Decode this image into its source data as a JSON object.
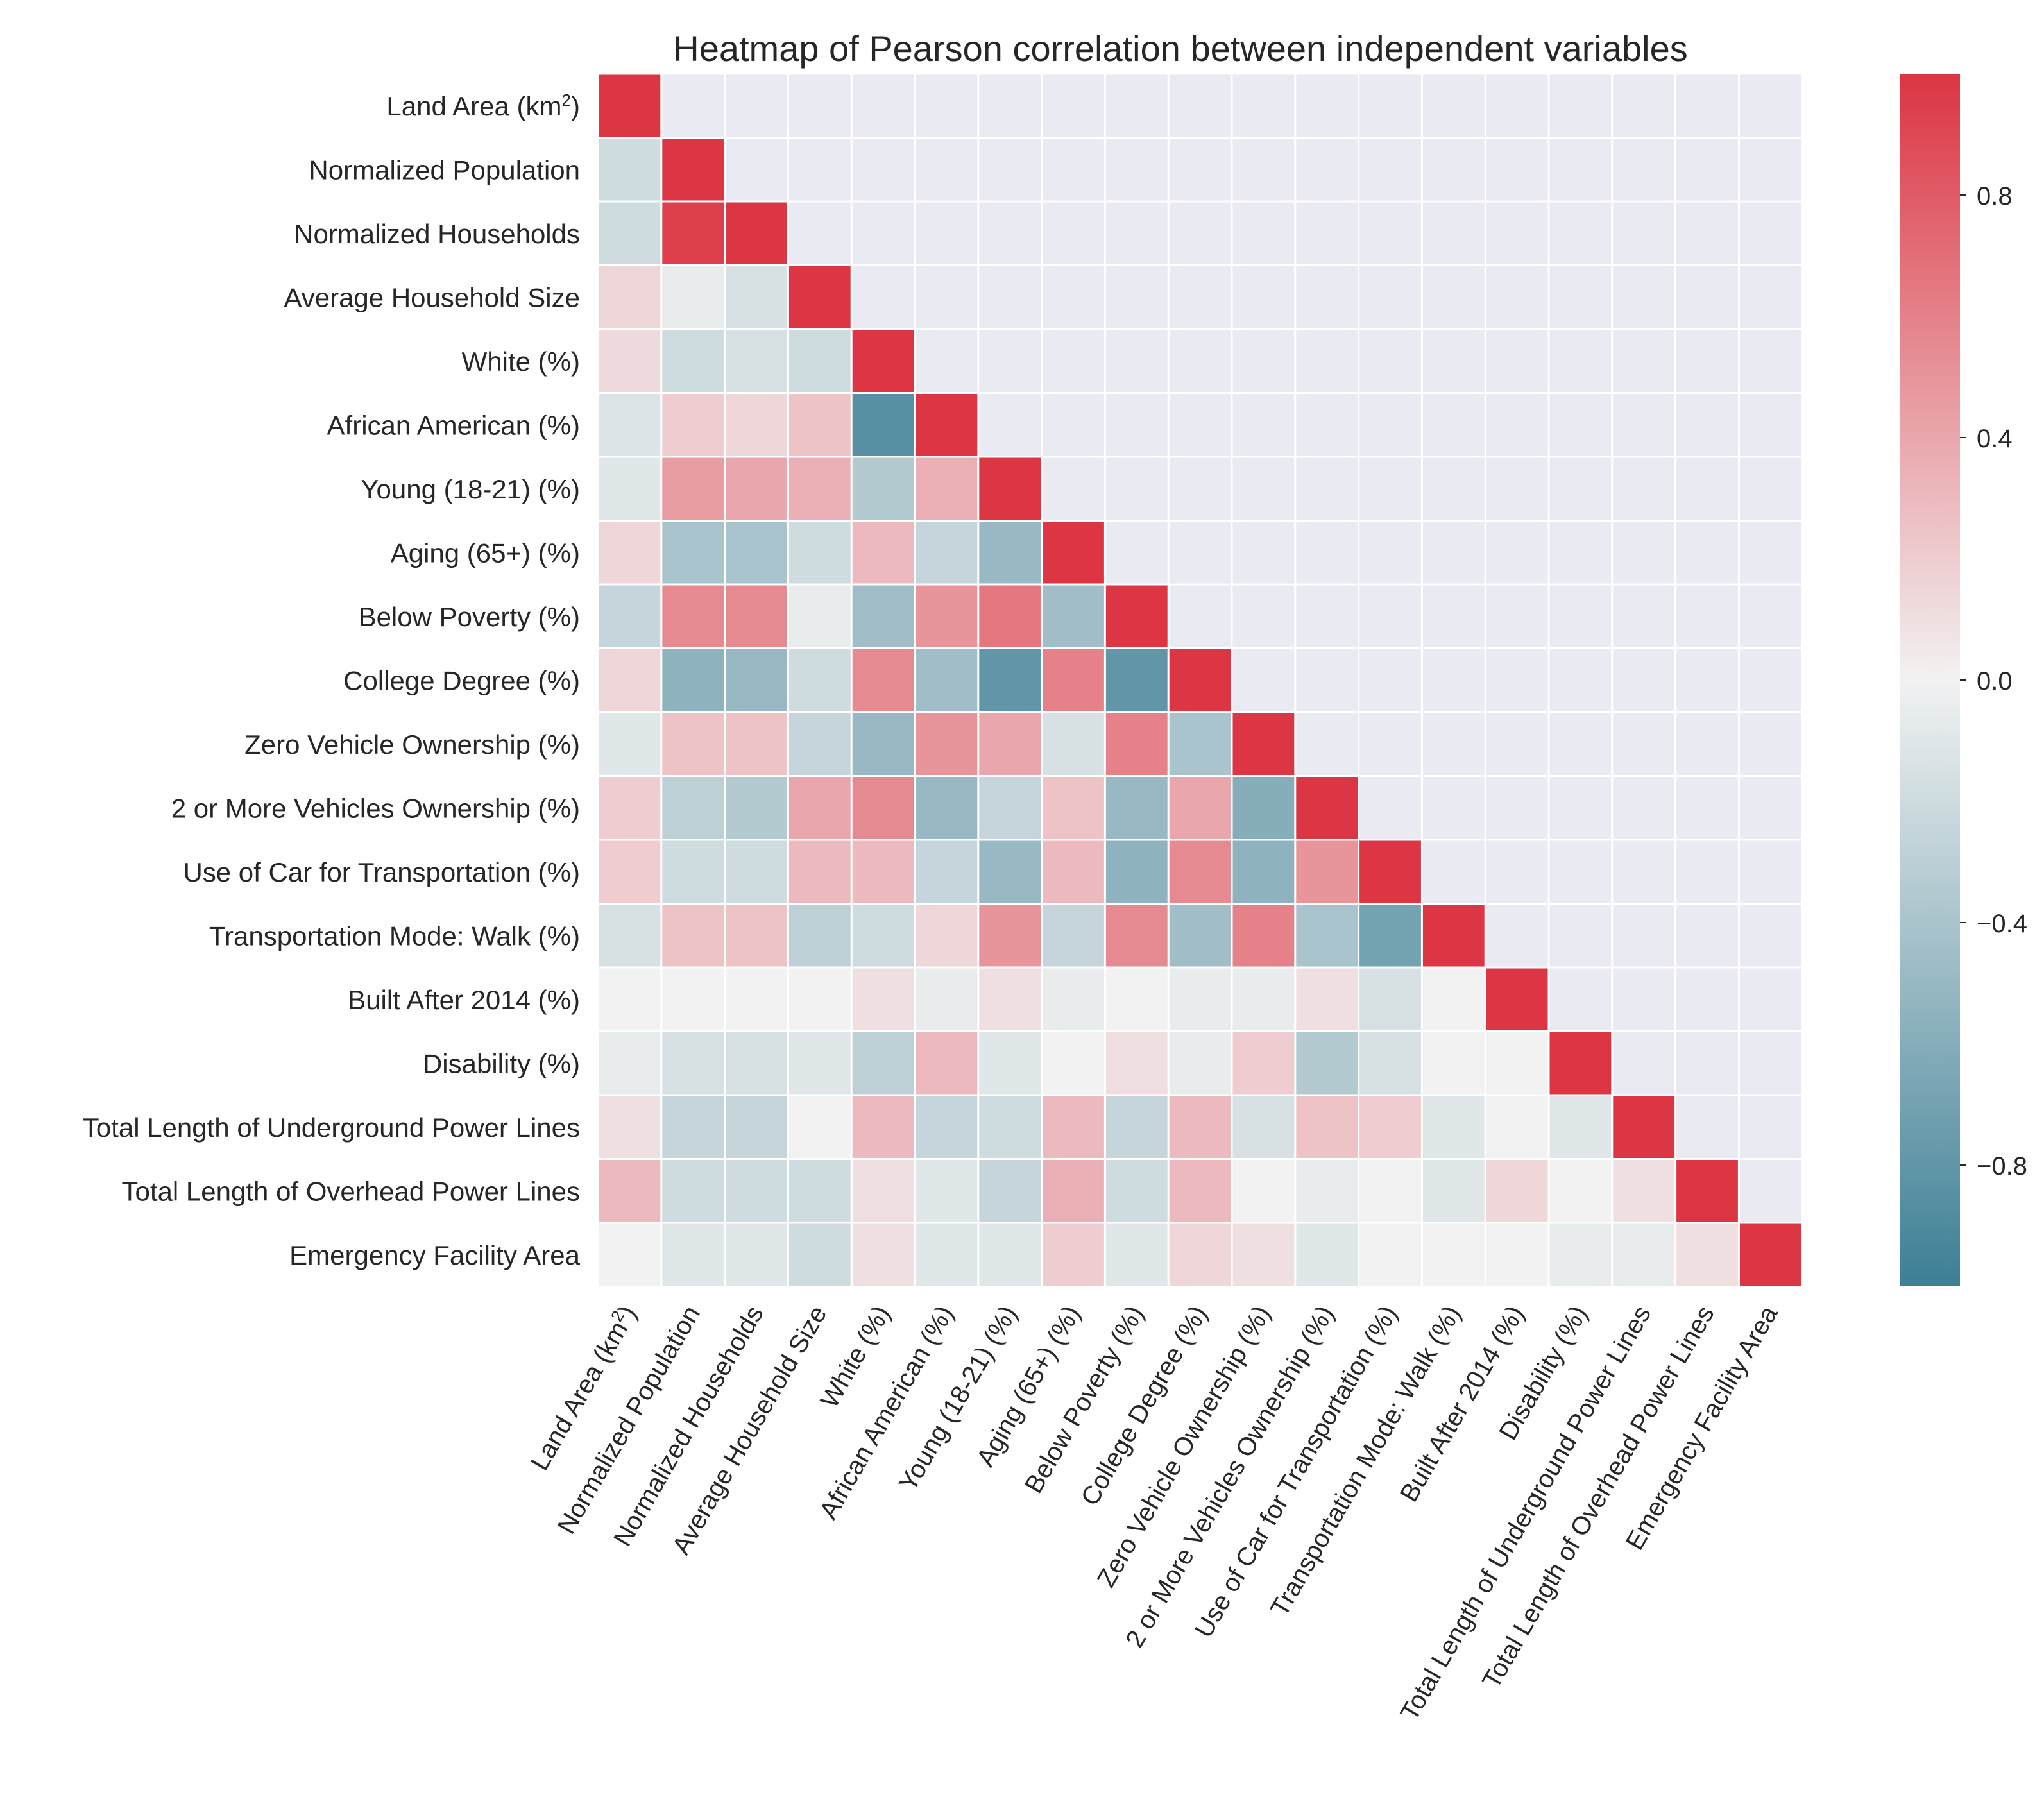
{
  "chart_data": {
    "type": "heatmap",
    "title": "Heatmap of Pearson correlation between independent variables",
    "row_labels": [
      {
        "base": "Land Area (km",
        "sup": "2",
        "tail": ")"
      },
      {
        "base": "Normalized Population"
      },
      {
        "base": "Normalized Households"
      },
      {
        "base": "Average Household Size"
      },
      {
        "base": "White (%)"
      },
      {
        "base": "African American (%)"
      },
      {
        "base": "Young (18-21) (%)"
      },
      {
        "base": "Aging (65+) (%)"
      },
      {
        "base": "Below Poverty (%)"
      },
      {
        "base": "College Degree (%)"
      },
      {
        "base": "Zero Vehicle Ownership (%)"
      },
      {
        "base": "2 or More Vehicles Ownership (%)"
      },
      {
        "base": "Use of Car for Transportation (%)"
      },
      {
        "base": "Transportation Mode: Walk (%)"
      },
      {
        "base": "Built After 2014 (%)"
      },
      {
        "base": "Disability (%)"
      },
      {
        "base": "Total Length of Underground Power Lines"
      },
      {
        "base": "Total Length of Overhead Power Lines"
      },
      {
        "base": "Emergency Facility Area"
      }
    ],
    "col_labels": [
      {
        "base": "Land Area (km",
        "sup": "2",
        "tail": ")"
      },
      {
        "base": "Normalized Population"
      },
      {
        "base": "Normalized Households"
      },
      {
        "base": "Average Household Size"
      },
      {
        "base": "White (%)"
      },
      {
        "base": "African American (%)"
      },
      {
        "base": "Young (18-21) (%)"
      },
      {
        "base": "Aging (65+) (%)"
      },
      {
        "base": "Below Poverty (%)"
      },
      {
        "base": "College Degree (%)"
      },
      {
        "base": "Zero Vehicle Ownership (%)"
      },
      {
        "base": "2 or More Vehicles Ownership (%)"
      },
      {
        "base": "Use of Car for Transportation (%)"
      },
      {
        "base": "Transportation Mode: Walk (%)"
      },
      {
        "base": "Built After 2014 (%)"
      },
      {
        "base": "Disability (%)"
      },
      {
        "base": "Total Length of Underground Power Lines"
      },
      {
        "base": "Total Length of Overhead Power Lines"
      },
      {
        "base": "Emergency Facility Area"
      }
    ],
    "mask": "upper-triangle",
    "values": [
      [
        1.0
      ],
      [
        -0.2,
        1.0
      ],
      [
        -0.2,
        0.95,
        1.0
      ],
      [
        0.15,
        -0.05,
        -0.15,
        1.0
      ],
      [
        0.12,
        -0.2,
        -0.15,
        -0.2,
        1.0
      ],
      [
        -0.12,
        0.2,
        0.15,
        0.25,
        -0.85,
        1.0
      ],
      [
        -0.1,
        0.45,
        0.4,
        0.35,
        -0.35,
        0.35,
        1.0
      ],
      [
        0.15,
        -0.4,
        -0.4,
        -0.2,
        0.3,
        -0.25,
        -0.5,
        1.0
      ],
      [
        -0.25,
        0.55,
        0.55,
        -0.05,
        -0.45,
        0.5,
        0.65,
        -0.45,
        1.0
      ],
      [
        0.15,
        -0.55,
        -0.5,
        -0.2,
        0.55,
        -0.45,
        -0.8,
        0.6,
        -0.8,
        1.0
      ],
      [
        -0.1,
        0.25,
        0.25,
        -0.25,
        -0.5,
        0.5,
        0.4,
        -0.15,
        0.6,
        -0.4,
        1.0
      ],
      [
        0.2,
        -0.3,
        -0.35,
        0.4,
        0.55,
        -0.5,
        -0.25,
        0.25,
        -0.5,
        0.4,
        -0.6,
        1.0
      ],
      [
        0.2,
        -0.2,
        -0.2,
        0.3,
        0.3,
        -0.25,
        -0.5,
        0.3,
        -0.55,
        0.55,
        -0.55,
        0.5,
        1.0
      ],
      [
        -0.15,
        0.25,
        0.25,
        -0.3,
        -0.2,
        0.15,
        0.5,
        -0.25,
        0.55,
        -0.45,
        0.6,
        -0.4,
        -0.7,
        1.0
      ],
      [
        0.0,
        0.0,
        0.0,
        0.0,
        0.1,
        -0.05,
        0.1,
        -0.05,
        0.0,
        -0.05,
        -0.05,
        0.1,
        -0.15,
        0.0,
        1.0
      ],
      [
        -0.05,
        -0.15,
        -0.15,
        -0.1,
        -0.3,
        0.3,
        -0.1,
        0.0,
        0.1,
        -0.05,
        0.2,
        -0.35,
        -0.15,
        0.0,
        0.0,
        1.0
      ],
      [
        0.1,
        -0.25,
        -0.25,
        0.0,
        0.3,
        -0.25,
        -0.2,
        0.3,
        -0.25,
        0.3,
        -0.15,
        0.25,
        0.2,
        -0.1,
        0.0,
        -0.1,
        1.0
      ],
      [
        0.3,
        -0.2,
        -0.2,
        -0.2,
        0.1,
        -0.1,
        -0.25,
        0.35,
        -0.2,
        0.3,
        0.0,
        -0.05,
        0.0,
        -0.1,
        0.15,
        0.0,
        0.1,
        1.0
      ],
      [
        0.0,
        -0.1,
        -0.1,
        -0.2,
        0.1,
        -0.1,
        -0.1,
        0.2,
        -0.1,
        0.15,
        0.1,
        -0.1,
        0.0,
        0.0,
        0.0,
        -0.05,
        -0.05,
        0.1,
        1.0
      ]
    ],
    "vmin": -1.0,
    "vmax": 1.0,
    "colormap": {
      "low": "#3d7f95",
      "mid": "#f2f2f2",
      "high": "#dc3543",
      "masked": "#eaeaf2",
      "cell_border": "#ffffff"
    },
    "colorbar": {
      "ticks": [
        0.8,
        0.4,
        0.0,
        -0.4,
        -0.8
      ],
      "tick_labels": [
        "0.8",
        "0.4",
        "0.0",
        "−0.4",
        "−0.8"
      ]
    }
  }
}
